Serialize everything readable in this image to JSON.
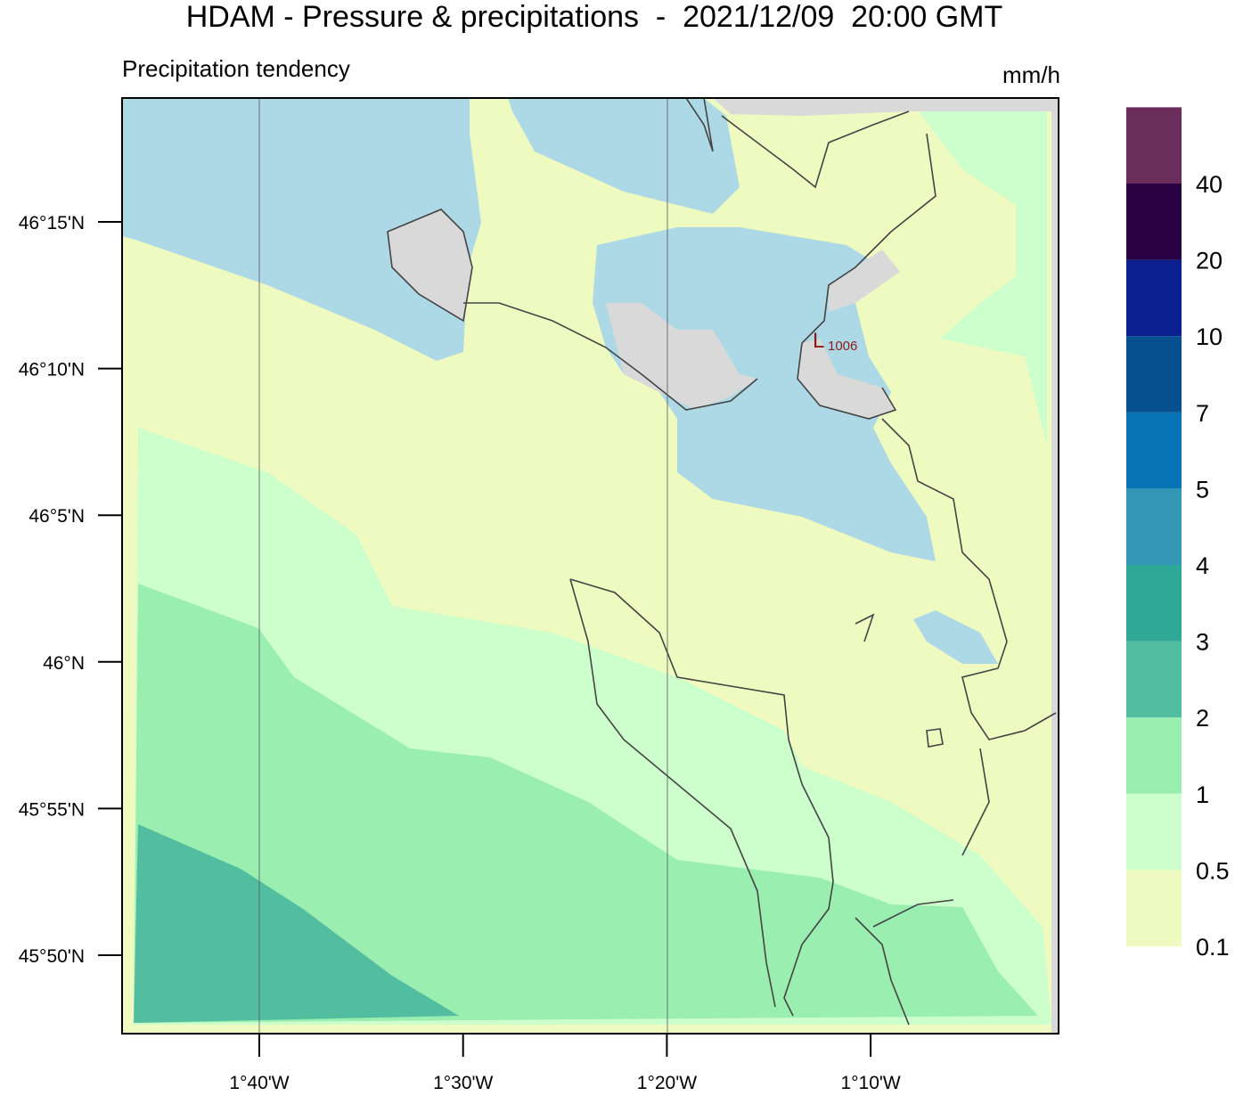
{
  "title": "HDAM - Pressure & precipitations  -  2021/12/09  20:00 GMT",
  "subtitle": "Precipitation tendency",
  "unit": "mm/h",
  "lat_labels": [
    "46°15'N",
    "46°10'N",
    "46°5'N",
    "46°N",
    "45°55'N",
    "45°50'N"
  ],
  "lon_labels": [
    "1°40'W",
    "1°30'W",
    "1°20'W",
    "1°10'W"
  ],
  "legend": {
    "levels": [
      0.1,
      0.5,
      1,
      2,
      3,
      4,
      5,
      7,
      10,
      20,
      40
    ],
    "colors": [
      "#eefac0",
      "#ccffcc",
      "#99eeb0",
      "#52be9f",
      "#30a898",
      "#3497b8",
      "#0673b4",
      "#07508f",
      "#0c1f8f",
      "#2a0045",
      "#6b2d5c"
    ]
  },
  "pressure_centers": [
    {
      "label": "L",
      "value": 1006
    }
  ]
}
